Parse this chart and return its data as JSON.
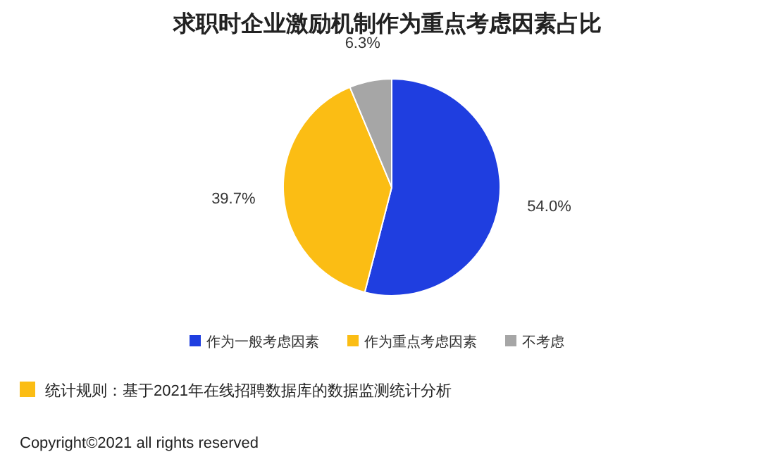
{
  "chart_data": {
    "type": "pie",
    "title": "求职时企业激励机制作为重点考虑因素占比",
    "categories": [
      "作为一般考虑因素",
      "作为重点考虑因素",
      "不考虑"
    ],
    "values": [
      54.0,
      39.7,
      6.3
    ],
    "value_labels": [
      "54.0%",
      "39.7%",
      "6.3%"
    ],
    "colors": [
      "#1f3ee0",
      "#fbbd14",
      "#a6a6a6"
    ],
    "legend": "bottom",
    "annotations": [
      "统计规则：基于2021年在线招聘数据库的数据监测统计分析",
      "Copyright©2021 all rights reserved"
    ]
  }
}
